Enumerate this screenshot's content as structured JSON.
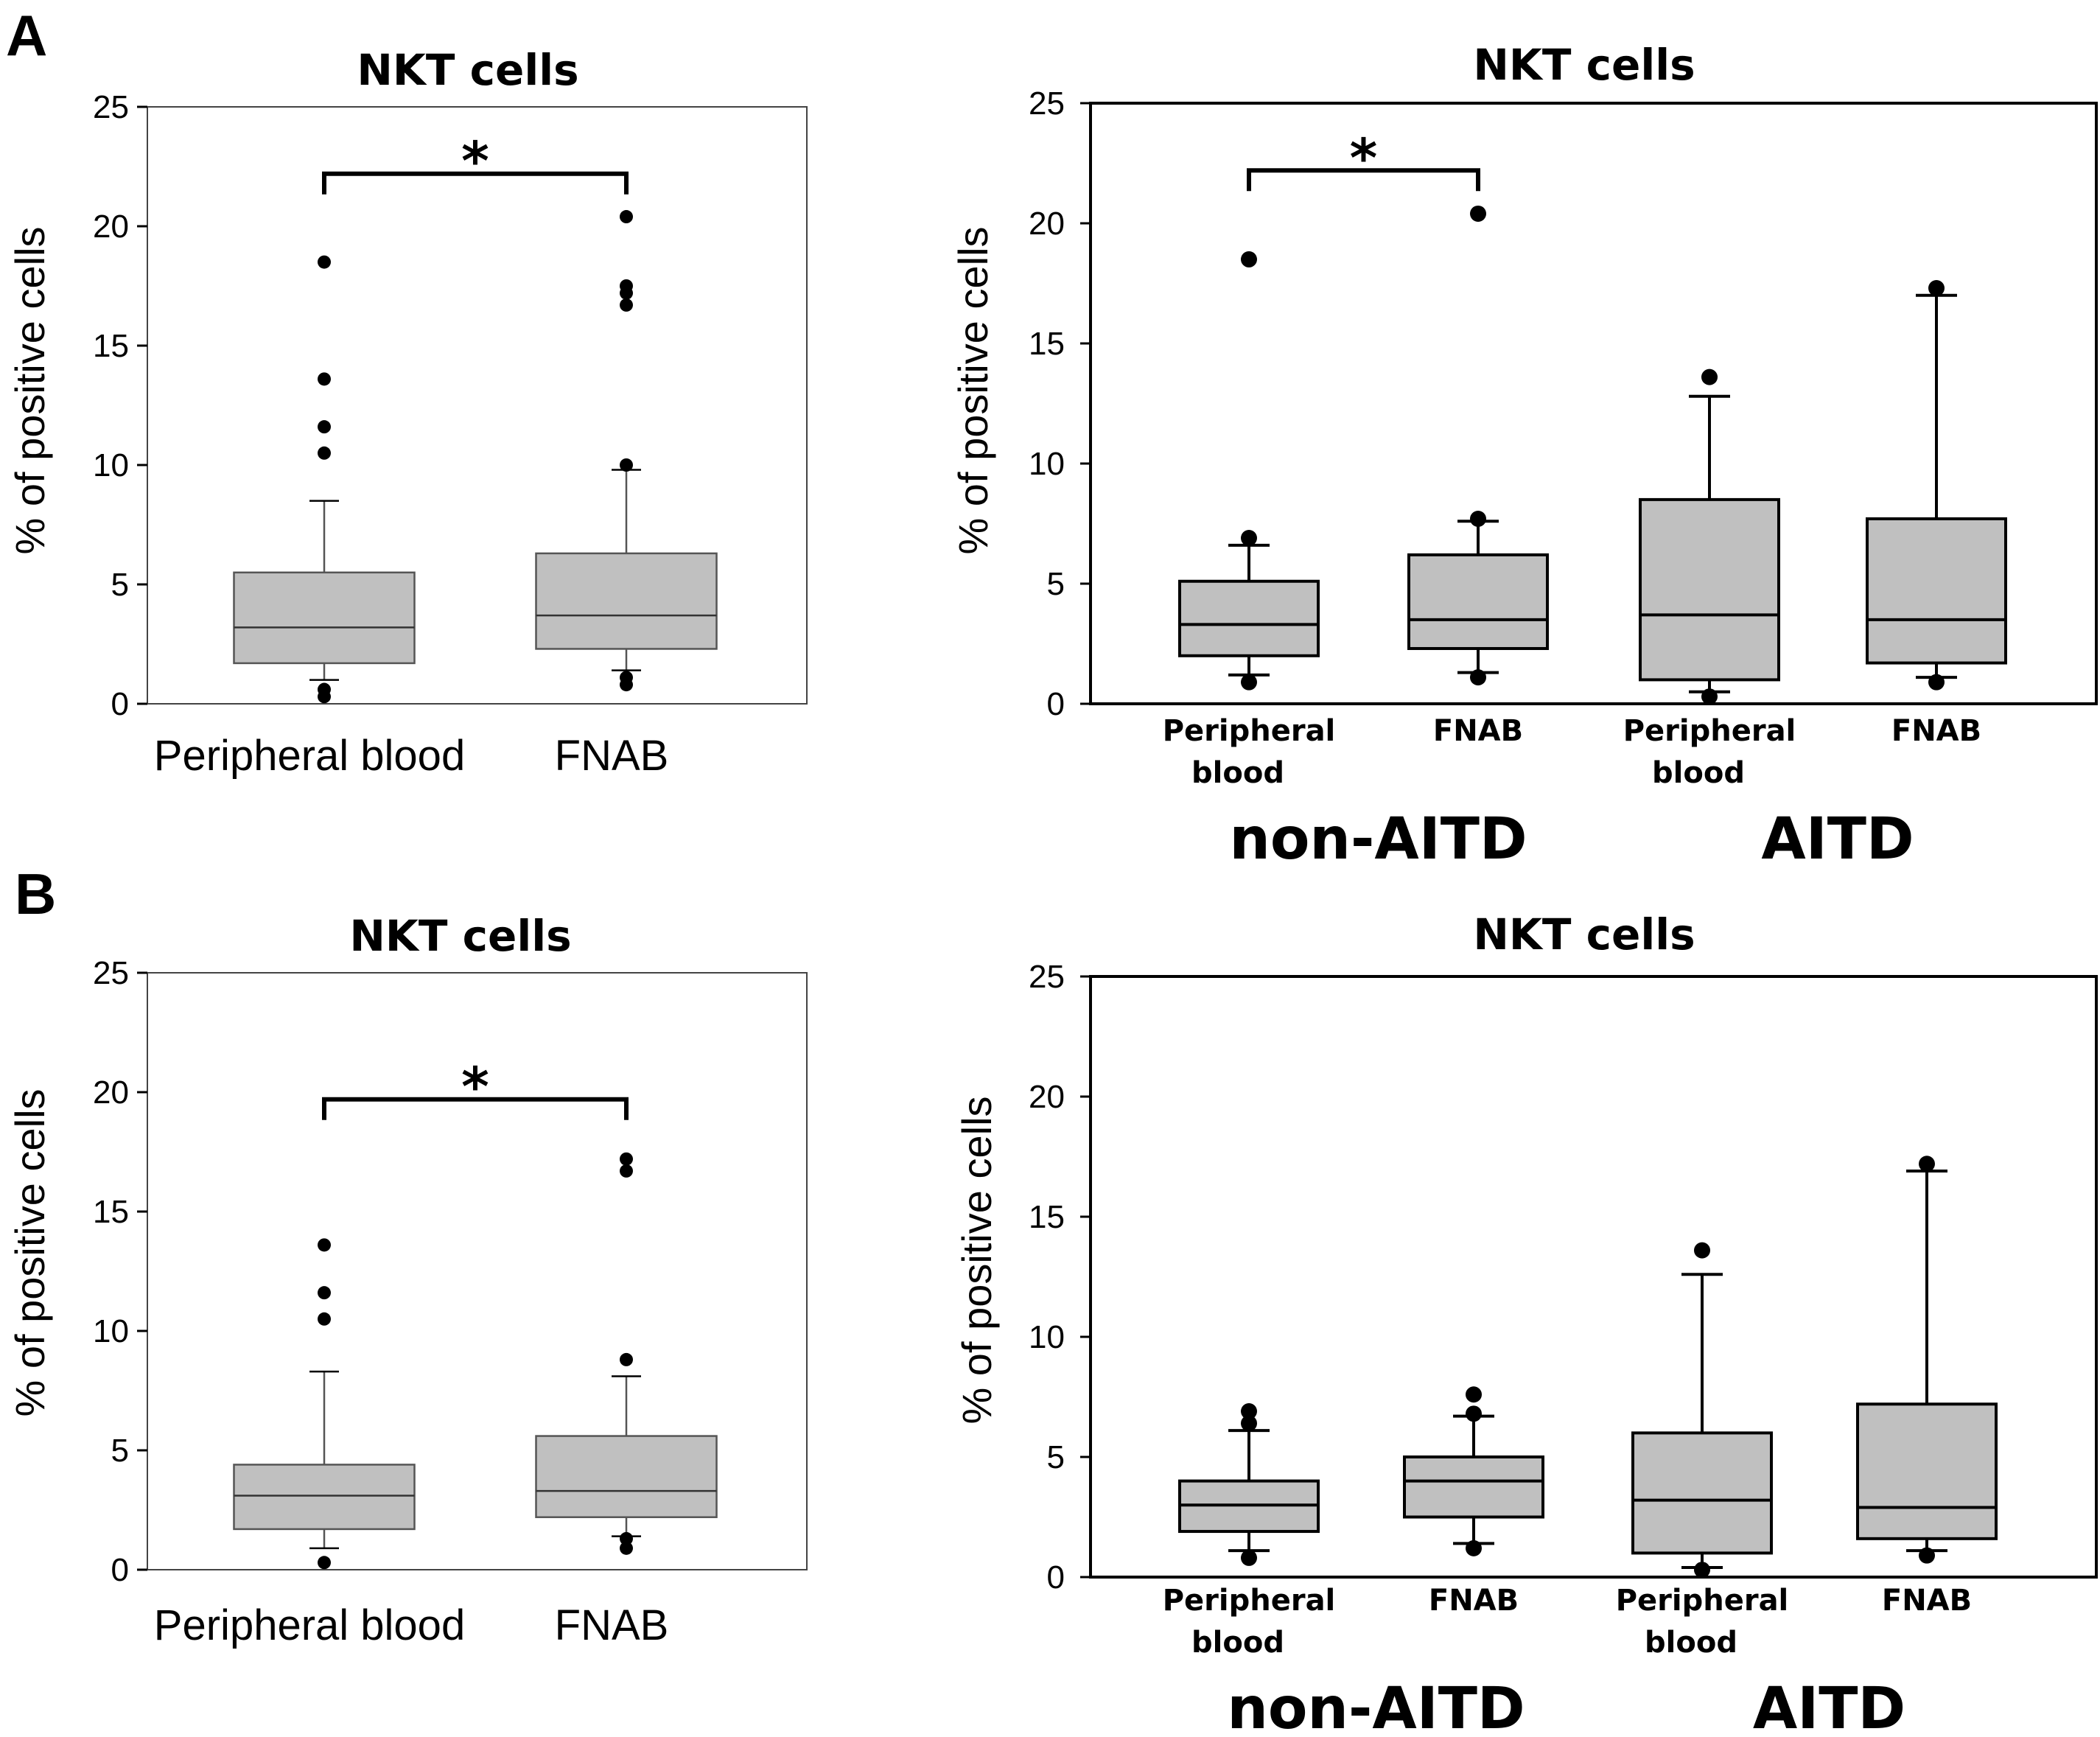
{
  "panels": [
    {
      "letter": "A"
    },
    {
      "letter": "B"
    }
  ],
  "chart_data": [
    {
      "type": "box",
      "panel": "A",
      "title": "NKT cells",
      "xlabel": "",
      "ylabel": "% of positive cells",
      "ylim": [
        0,
        25
      ],
      "yticks": [
        0,
        5,
        10,
        15,
        20,
        25
      ],
      "grid": false,
      "style": "thin",
      "categories": [
        "Peripheral blood",
        "FNAB"
      ],
      "groups": [],
      "boxes": [
        {
          "label": "Peripheral blood",
          "whisker_low": 1.0,
          "q1": 1.7,
          "median": 3.2,
          "q3": 5.5,
          "whisker_high": 8.5,
          "outliers": [
            0.3,
            0.6,
            10.5,
            11.6,
            13.6,
            18.5
          ]
        },
        {
          "label": "FNAB",
          "whisker_low": 1.4,
          "q1": 2.3,
          "median": 3.7,
          "q3": 6.3,
          "whisker_high": 9.8,
          "outliers": [
            0.8,
            1.1,
            10.0,
            16.7,
            17.2,
            17.5,
            20.4
          ]
        }
      ],
      "significance": [
        {
          "from": 0,
          "to": 1,
          "label": "*",
          "y": 22.2
        }
      ]
    },
    {
      "type": "box",
      "panel": "A",
      "title": "NKT cells",
      "xlabel": "",
      "ylabel": "% of positive cells",
      "ylim": [
        0,
        25
      ],
      "yticks": [
        0,
        5,
        10,
        15,
        20,
        25
      ],
      "grid": false,
      "style": "bold",
      "categories": [
        "Peripheral blood",
        "FNAB",
        "Peripheral blood",
        "FNAB"
      ],
      "groups": [
        {
          "label": "non-AITD",
          "boxes": [
            0,
            1
          ]
        },
        {
          "label": "AITD",
          "boxes": [
            2,
            3
          ]
        }
      ],
      "boxes": [
        {
          "label": "Peripheral blood",
          "whisker_low": 1.2,
          "q1": 2.0,
          "median": 3.3,
          "q3": 5.1,
          "whisker_high": 6.6,
          "outliers": [
            0.9,
            6.9,
            18.5
          ]
        },
        {
          "label": "FNAB",
          "whisker_low": 1.3,
          "q1": 2.3,
          "median": 3.5,
          "q3": 6.2,
          "whisker_high": 7.6,
          "outliers": [
            1.1,
            7.7,
            20.4
          ]
        },
        {
          "label": "Peripheral blood",
          "whisker_low": 0.5,
          "q1": 1.0,
          "median": 3.7,
          "q3": 8.5,
          "whisker_high": 12.8,
          "outliers": [
            0.3,
            13.6
          ]
        },
        {
          "label": "FNAB",
          "whisker_low": 1.1,
          "q1": 1.7,
          "median": 3.5,
          "q3": 7.7,
          "whisker_high": 17.0,
          "outliers": [
            0.9,
            17.3
          ]
        }
      ],
      "significance": [
        {
          "from": 0,
          "to": 1,
          "label": "*",
          "y": 22.2
        }
      ]
    },
    {
      "type": "box",
      "panel": "B",
      "title": "NKT cells",
      "xlabel": "",
      "ylabel": "% of positive cells",
      "ylim": [
        0,
        25
      ],
      "yticks": [
        0,
        5,
        10,
        15,
        20,
        25
      ],
      "grid": false,
      "style": "thin",
      "categories": [
        "Peripheral blood",
        "FNAB"
      ],
      "groups": [],
      "boxes": [
        {
          "label": "Peripheral blood",
          "whisker_low": 0.9,
          "q1": 1.7,
          "median": 3.1,
          "q3": 4.4,
          "whisker_high": 8.3,
          "outliers": [
            0.3,
            10.5,
            11.6,
            13.6
          ]
        },
        {
          "label": "FNAB",
          "whisker_low": 1.4,
          "q1": 2.2,
          "median": 3.3,
          "q3": 5.6,
          "whisker_high": 8.1,
          "outliers": [
            0.9,
            1.3,
            8.8,
            16.7,
            17.2
          ]
        }
      ],
      "significance": [
        {
          "from": 0,
          "to": 1,
          "label": "*",
          "y": 19.7
        }
      ]
    },
    {
      "type": "box",
      "panel": "B",
      "title": "NKT cells",
      "xlabel": "",
      "ylabel": "% of positive cells",
      "ylim": [
        0,
        25
      ],
      "yticks": [
        0,
        5,
        10,
        15,
        20,
        25
      ],
      "grid": false,
      "style": "bold",
      "categories": [
        "Peripheral blood",
        "FNAB",
        "Peripheral blood",
        "FNAB"
      ],
      "groups": [
        {
          "label": "non-AITD",
          "boxes": [
            0,
            1
          ]
        },
        {
          "label": "AITD",
          "boxes": [
            2,
            3
          ]
        }
      ],
      "boxes": [
        {
          "label": "Peripheral blood",
          "whisker_low": 1.1,
          "q1": 1.9,
          "median": 3.0,
          "q3": 4.0,
          "whisker_high": 6.1,
          "outliers": [
            0.8,
            6.4,
            6.9
          ]
        },
        {
          "label": "FNAB",
          "whisker_low": 1.4,
          "q1": 2.5,
          "median": 4.0,
          "q3": 5.0,
          "whisker_high": 6.7,
          "outliers": [
            1.2,
            6.8,
            7.6
          ]
        },
        {
          "label": "Peripheral blood",
          "whisker_low": 0.4,
          "q1": 1.0,
          "median": 3.2,
          "q3": 6.0,
          "whisker_high": 12.6,
          "outliers": [
            0.3,
            13.6
          ]
        },
        {
          "label": "FNAB",
          "whisker_low": 1.1,
          "q1": 1.6,
          "median": 2.9,
          "q3": 7.2,
          "whisker_high": 16.9,
          "outliers": [
            0.9,
            17.2
          ]
        }
      ],
      "significance": []
    }
  ],
  "colors": {
    "box_fill": "#c0c0c0",
    "ink": "#000000",
    "thin_stroke": "#555555",
    "axis_frame": "#444444"
  }
}
